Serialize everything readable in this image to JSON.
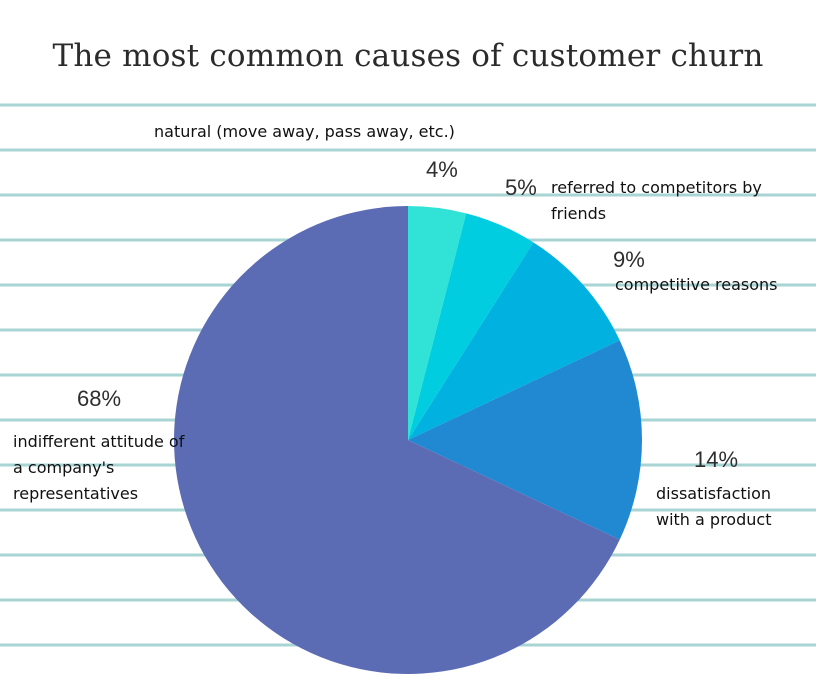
{
  "title": "The most common causes of customer churn",
  "colors": {
    "background": "#ffffff",
    "ruled_line": "#a9d4d4"
  },
  "chart_data": {
    "type": "pie",
    "title": "The most common causes of customer churn",
    "slices": [
      {
        "label": "natural (move away, pass away, etc.)",
        "value": 4,
        "display": "4%",
        "color": "#30e3d6"
      },
      {
        "label": "referred to competitors by friends",
        "value": 5,
        "display": "5%",
        "color": "#00cde0"
      },
      {
        "label": "competitive reasons",
        "value": 9,
        "display": "9%",
        "color": "#01b1e0"
      },
      {
        "label": "dissatisfaction with a product",
        "value": 14,
        "display": "14%",
        "color": "#2089d1"
      },
      {
        "label": "indifferent attitude of a company's representatives",
        "value": 68,
        "display": "68%",
        "color": "#5b6cb4"
      }
    ],
    "legend": "none"
  }
}
